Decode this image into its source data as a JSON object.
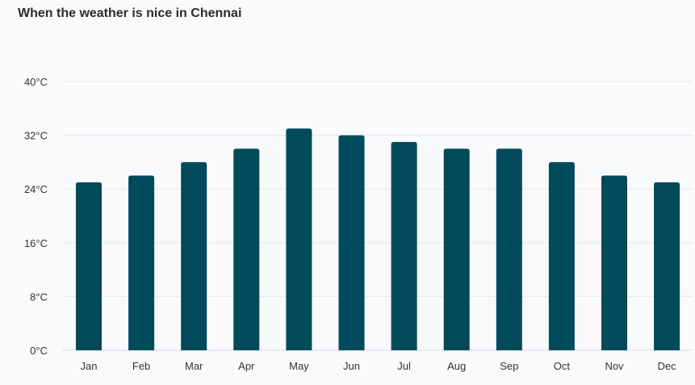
{
  "header": {
    "title": "When the weather is nice in Chennai"
  },
  "chart_data": {
    "type": "bar",
    "title": "When the weather is nice in Chennai",
    "xlabel": "",
    "ylabel": "",
    "categories": [
      "Jan",
      "Feb",
      "Mar",
      "Apr",
      "May",
      "Jun",
      "Jul",
      "Aug",
      "Sep",
      "Oct",
      "Nov",
      "Dec"
    ],
    "values": [
      25,
      26,
      28,
      30,
      33,
      32,
      31,
      30,
      30,
      28,
      26,
      25
    ],
    "unit": "°C",
    "ylim": [
      0,
      40
    ],
    "yticks": [
      0,
      8,
      16,
      24,
      32,
      40
    ],
    "ytick_labels": [
      "0°C",
      "8°C",
      "16°C",
      "24°C",
      "32°C",
      "40°C"
    ],
    "grid": true,
    "legend": "none",
    "bar_color": "#004a5c"
  }
}
